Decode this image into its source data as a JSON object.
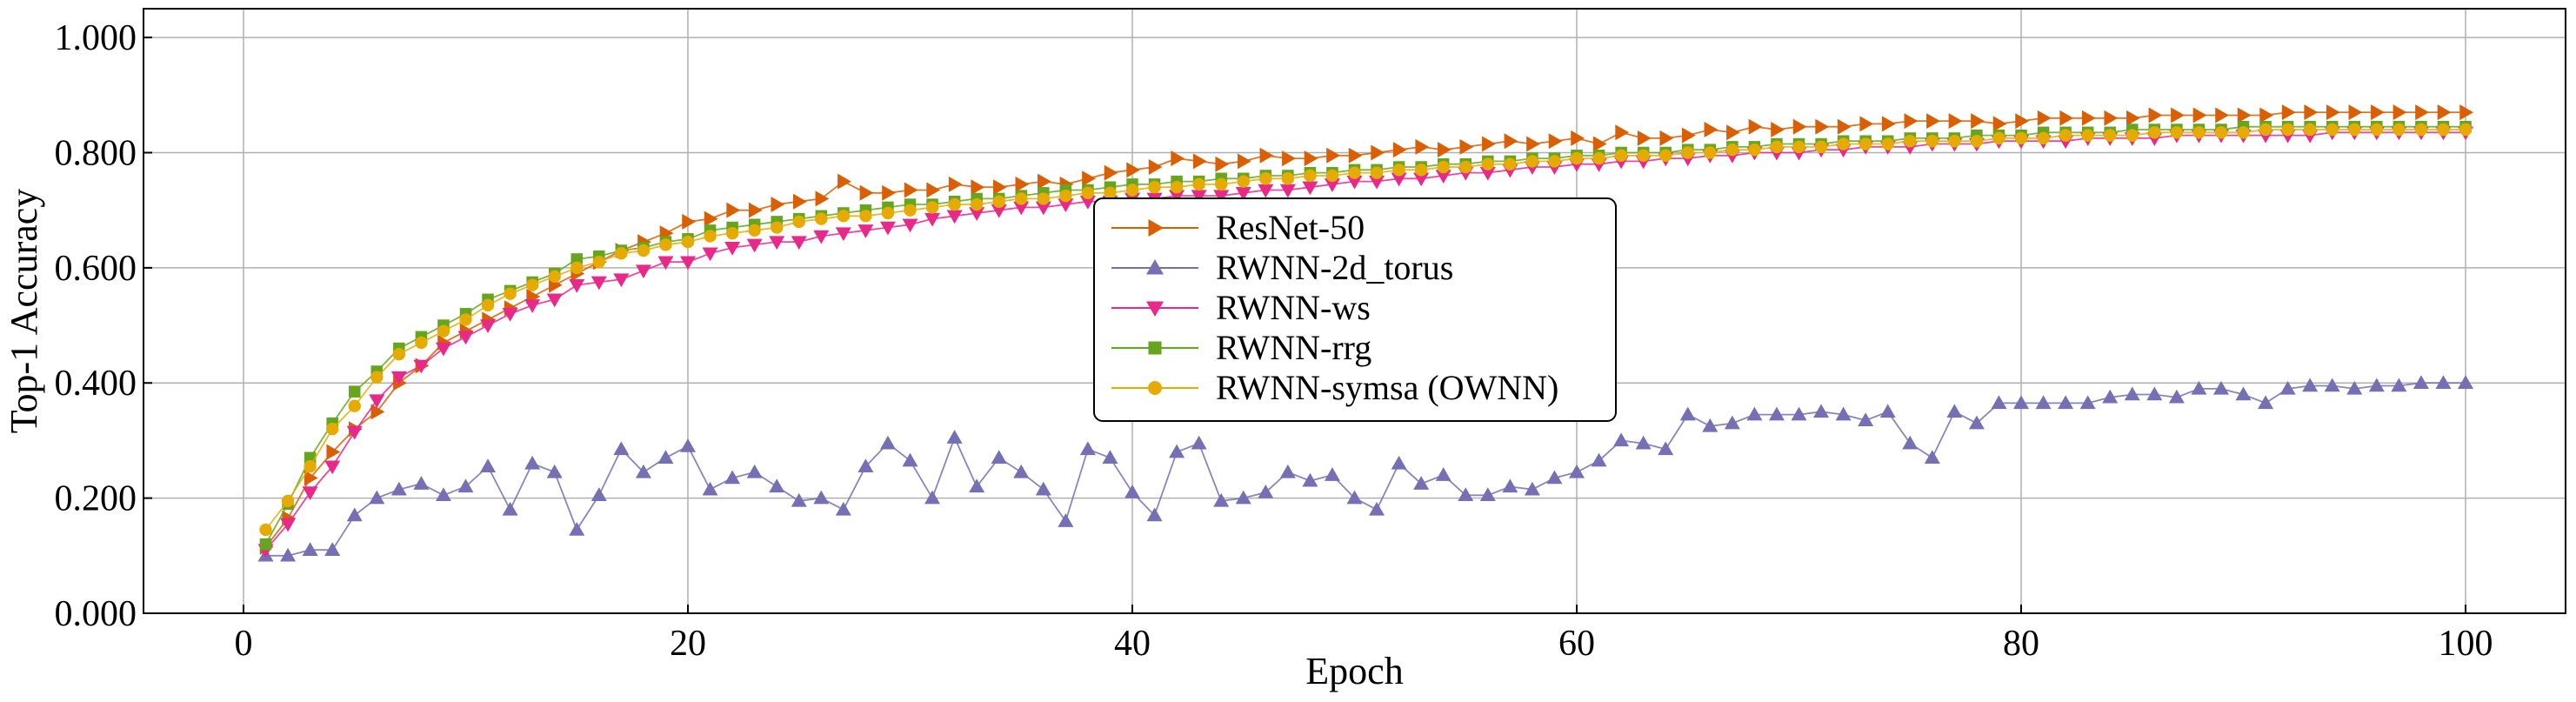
{
  "chart_data": {
    "type": "line",
    "xlabel": "Epoch",
    "ylabel": "Top-1 Accuracy",
    "xlim": [
      -4.5,
      104.5
    ],
    "ylim": [
      0.0,
      1.05
    ],
    "x_ticks": [
      0,
      20,
      40,
      60,
      80,
      100
    ],
    "x_tick_labels": [
      "0",
      "20",
      "40",
      "60",
      "80",
      "100"
    ],
    "y_ticks": [
      0.0,
      0.2,
      0.4,
      0.6,
      0.8,
      1.0
    ],
    "y_tick_labels": [
      "0.000",
      "0.200",
      "0.400",
      "0.600",
      "0.800",
      "1.000"
    ],
    "grid": true,
    "legend_position": "center",
    "series": [
      {
        "name": "ResNet-50",
        "color": "#d95f02",
        "marker": "triangle-right",
        "values": [
          0.115,
          0.165,
          0.235,
          0.28,
          0.32,
          0.35,
          0.4,
          0.43,
          0.47,
          0.49,
          0.51,
          0.53,
          0.55,
          0.57,
          0.59,
          0.61,
          0.63,
          0.645,
          0.66,
          0.68,
          0.685,
          0.7,
          0.7,
          0.71,
          0.715,
          0.72,
          0.75,
          0.73,
          0.73,
          0.735,
          0.735,
          0.745,
          0.74,
          0.74,
          0.745,
          0.75,
          0.745,
          0.755,
          0.765,
          0.77,
          0.775,
          0.79,
          0.785,
          0.78,
          0.785,
          0.795,
          0.79,
          0.79,
          0.795,
          0.795,
          0.8,
          0.805,
          0.81,
          0.805,
          0.81,
          0.815,
          0.82,
          0.815,
          0.82,
          0.825,
          0.815,
          0.835,
          0.825,
          0.825,
          0.83,
          0.84,
          0.835,
          0.845,
          0.84,
          0.845,
          0.845,
          0.845,
          0.85,
          0.85,
          0.855,
          0.855,
          0.855,
          0.855,
          0.85,
          0.855,
          0.86,
          0.86,
          0.86,
          0.86,
          0.86,
          0.865,
          0.865,
          0.865,
          0.865,
          0.865,
          0.865,
          0.87,
          0.87,
          0.87,
          0.87,
          0.87,
          0.87,
          0.87,
          0.87,
          0.87
        ]
      },
      {
        "name": "RWNN-2d_torus",
        "color": "#7570b3",
        "marker": "triangle-up",
        "values": [
          0.1,
          0.1,
          0.11,
          0.11,
          0.17,
          0.2,
          0.215,
          0.225,
          0.205,
          0.22,
          0.255,
          0.18,
          0.26,
          0.245,
          0.145,
          0.205,
          0.285,
          0.245,
          0.27,
          0.29,
          0.215,
          0.235,
          0.245,
          0.22,
          0.195,
          0.2,
          0.18,
          0.255,
          0.295,
          0.265,
          0.2,
          0.305,
          0.22,
          0.27,
          0.245,
          0.215,
          0.16,
          0.285,
          0.27,
          0.21,
          0.17,
          0.28,
          0.295,
          0.195,
          0.2,
          0.21,
          0.245,
          0.23,
          0.24,
          0.2,
          0.18,
          0.26,
          0.225,
          0.24,
          0.205,
          0.205,
          0.22,
          0.215,
          0.235,
          0.245,
          0.265,
          0.3,
          0.295,
          0.285,
          0.345,
          0.325,
          0.33,
          0.345,
          0.345,
          0.345,
          0.35,
          0.345,
          0.335,
          0.35,
          0.295,
          0.27,
          0.35,
          0.33,
          0.365,
          0.365,
          0.365,
          0.365,
          0.365,
          0.375,
          0.38,
          0.38,
          0.375,
          0.39,
          0.39,
          0.38,
          0.365,
          0.39,
          0.395,
          0.395,
          0.39,
          0.395,
          0.395,
          0.4,
          0.4,
          0.4
        ]
      },
      {
        "name": "RWNN-ws",
        "color": "#e7298a",
        "marker": "triangle-down",
        "values": [
          0.11,
          0.155,
          0.21,
          0.255,
          0.315,
          0.37,
          0.41,
          0.43,
          0.46,
          0.48,
          0.5,
          0.52,
          0.535,
          0.545,
          0.57,
          0.575,
          0.58,
          0.595,
          0.61,
          0.61,
          0.625,
          0.635,
          0.64,
          0.645,
          0.645,
          0.655,
          0.66,
          0.665,
          0.67,
          0.675,
          0.685,
          0.69,
          0.695,
          0.7,
          0.705,
          0.705,
          0.71,
          0.715,
          0.715,
          0.72,
          0.72,
          0.725,
          0.725,
          0.725,
          0.73,
          0.735,
          0.735,
          0.74,
          0.745,
          0.75,
          0.75,
          0.755,
          0.755,
          0.76,
          0.765,
          0.765,
          0.77,
          0.775,
          0.775,
          0.78,
          0.78,
          0.785,
          0.785,
          0.79,
          0.79,
          0.795,
          0.795,
          0.8,
          0.8,
          0.8,
          0.805,
          0.805,
          0.81,
          0.81,
          0.81,
          0.815,
          0.815,
          0.815,
          0.82,
          0.82,
          0.82,
          0.82,
          0.825,
          0.825,
          0.825,
          0.825,
          0.83,
          0.83,
          0.83,
          0.83,
          0.83,
          0.83,
          0.83,
          0.835,
          0.835,
          0.835,
          0.835,
          0.835,
          0.835,
          0.835
        ]
      },
      {
        "name": "RWNN-rrg",
        "color": "#66a61e",
        "marker": "square",
        "values": [
          0.12,
          0.19,
          0.27,
          0.33,
          0.385,
          0.42,
          0.46,
          0.48,
          0.5,
          0.52,
          0.545,
          0.56,
          0.575,
          0.59,
          0.615,
          0.62,
          0.63,
          0.635,
          0.645,
          0.65,
          0.665,
          0.67,
          0.675,
          0.68,
          0.685,
          0.69,
          0.695,
          0.7,
          0.705,
          0.71,
          0.71,
          0.715,
          0.72,
          0.72,
          0.725,
          0.73,
          0.735,
          0.735,
          0.74,
          0.745,
          0.745,
          0.75,
          0.75,
          0.755,
          0.755,
          0.76,
          0.76,
          0.765,
          0.765,
          0.77,
          0.77,
          0.775,
          0.775,
          0.78,
          0.78,
          0.785,
          0.785,
          0.79,
          0.79,
          0.795,
          0.795,
          0.8,
          0.8,
          0.8,
          0.805,
          0.805,
          0.81,
          0.81,
          0.815,
          0.815,
          0.815,
          0.82,
          0.82,
          0.82,
          0.825,
          0.825,
          0.825,
          0.83,
          0.83,
          0.83,
          0.835,
          0.835,
          0.835,
          0.835,
          0.84,
          0.84,
          0.84,
          0.84,
          0.84,
          0.845,
          0.845,
          0.845,
          0.845,
          0.845,
          0.845,
          0.845,
          0.845,
          0.845,
          0.845,
          0.845
        ]
      },
      {
        "name": "RWNN-symsa (OWNN)",
        "color": "#e6ab02",
        "marker": "circle",
        "values": [
          0.145,
          0.195,
          0.255,
          0.32,
          0.36,
          0.41,
          0.45,
          0.47,
          0.49,
          0.51,
          0.535,
          0.555,
          0.57,
          0.585,
          0.6,
          0.61,
          0.625,
          0.63,
          0.64,
          0.645,
          0.655,
          0.66,
          0.665,
          0.67,
          0.68,
          0.685,
          0.69,
          0.69,
          0.695,
          0.7,
          0.705,
          0.71,
          0.71,
          0.715,
          0.72,
          0.72,
          0.725,
          0.73,
          0.73,
          0.735,
          0.74,
          0.74,
          0.745,
          0.745,
          0.75,
          0.755,
          0.755,
          0.76,
          0.76,
          0.765,
          0.765,
          0.77,
          0.77,
          0.775,
          0.775,
          0.78,
          0.78,
          0.785,
          0.785,
          0.79,
          0.79,
          0.795,
          0.795,
          0.795,
          0.8,
          0.8,
          0.805,
          0.805,
          0.81,
          0.81,
          0.81,
          0.815,
          0.815,
          0.815,
          0.82,
          0.82,
          0.82,
          0.82,
          0.825,
          0.825,
          0.825,
          0.83,
          0.83,
          0.83,
          0.83,
          0.835,
          0.835,
          0.835,
          0.835,
          0.835,
          0.84,
          0.84,
          0.84,
          0.84,
          0.84,
          0.84,
          0.84,
          0.84,
          0.84,
          0.84
        ]
      }
    ]
  }
}
